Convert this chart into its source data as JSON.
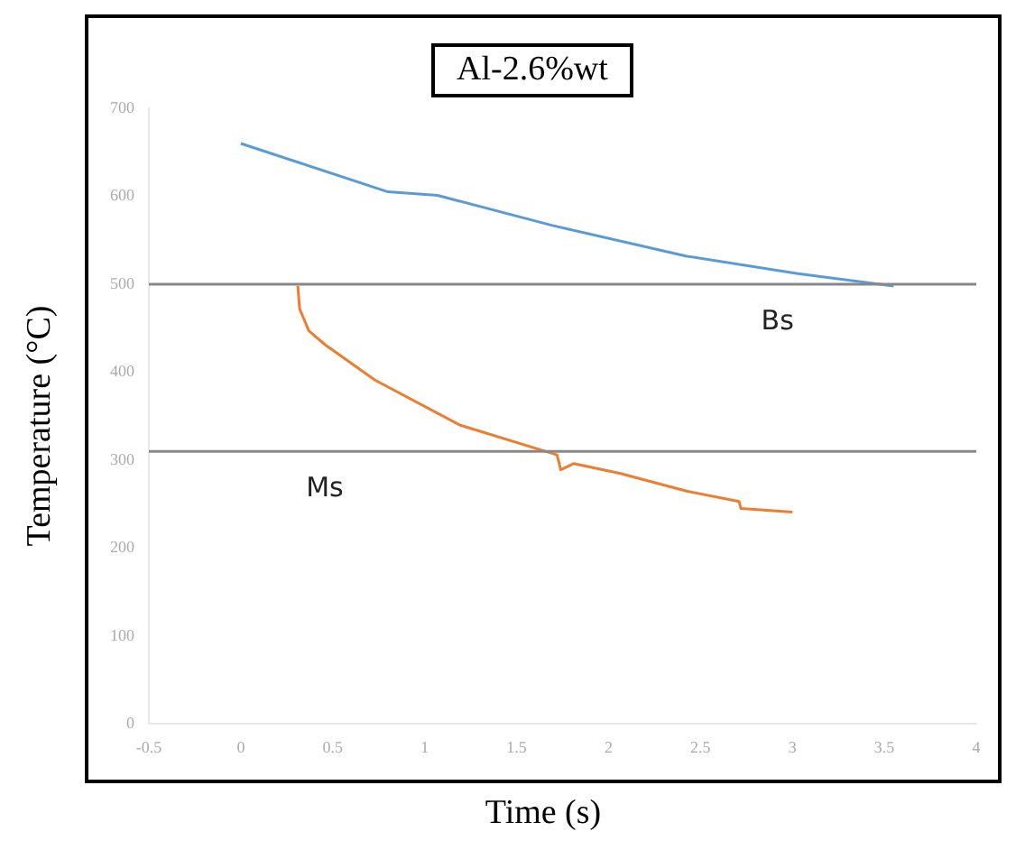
{
  "chart_data": {
    "type": "line",
    "title": "Al-2.6%wt",
    "xlabel": "Time (s)",
    "ylabel": "Temperature (°C)",
    "xlim": [
      -0.5,
      4
    ],
    "xticks": [
      -0.5,
      0,
      0.5,
      1,
      1.5,
      2,
      2.5,
      3,
      3.5,
      4
    ],
    "ylim": [
      0,
      700
    ],
    "yticks": [
      0,
      100,
      200,
      300,
      400,
      500,
      600,
      700
    ],
    "grid": false,
    "legend": false,
    "marker": "none",
    "line_style": "solid",
    "series": [
      {
        "color": "#5b9bd5",
        "x": [
          0,
          0.8,
          1.07,
          1.69,
          2.42,
          3.03,
          3.55
        ],
        "values": [
          660,
          605,
          601,
          567,
          532,
          512,
          498
        ]
      },
      {
        "color": "#ed7d31",
        "x": [
          0.31,
          0.32,
          0.37,
          0.46,
          0.73,
          1.19,
          1.72,
          1.74,
          1.81,
          2.06,
          2.42,
          2.71,
          2.72,
          3.0
        ],
        "values": [
          498,
          472,
          447,
          431,
          391,
          340,
          306,
          289,
          296,
          285,
          265,
          253,
          245,
          241
        ]
      }
    ],
    "ref_lines": [
      {
        "axis": "y",
        "value": 500,
        "color": "#888888",
        "label": "Bs"
      },
      {
        "axis": "y",
        "value": 310,
        "color": "#888888",
        "label": "Ms"
      }
    ]
  }
}
